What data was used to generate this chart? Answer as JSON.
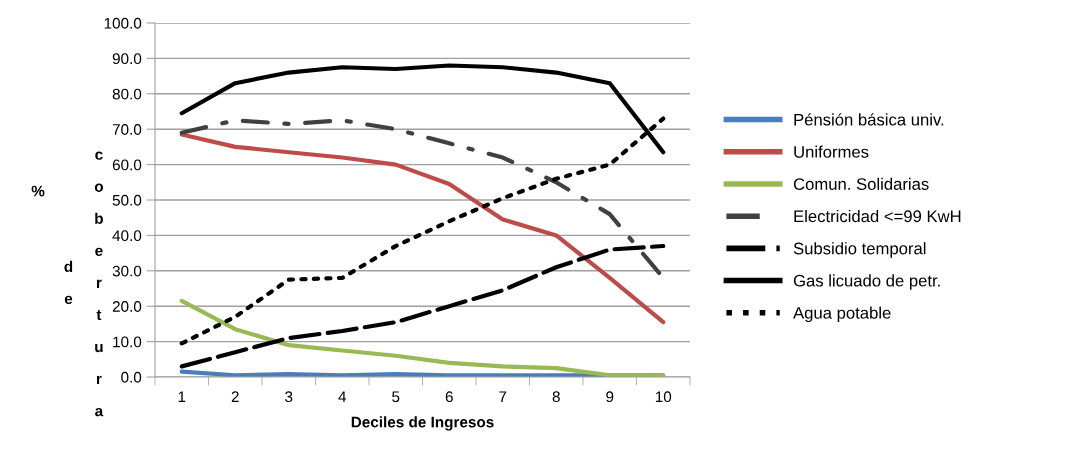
{
  "chart_data": {
    "type": "line",
    "xlabel": "Deciles de Ingresos",
    "ylabel": "% de cobertura",
    "categories": [
      "1",
      "2",
      "3",
      "4",
      "5",
      "6",
      "7",
      "8",
      "9",
      "10"
    ],
    "series": [
      {
        "name": "Pénsión básica univ.",
        "color": "#4a7ebb",
        "line_style": "solid",
        "values": [
          1.5,
          0.5,
          0.8,
          0.5,
          0.8,
          0.5,
          0.5,
          0.5,
          0.5,
          0.5
        ]
      },
      {
        "name": "Uniformes",
        "color": "#be4b48",
        "line_style": "solid",
        "values": [
          68.5,
          65,
          63.5,
          62,
          60,
          54.5,
          44.5,
          40,
          28,
          15.5
        ]
      },
      {
        "name": "Comun. Solidarias",
        "color": "#98b954",
        "line_style": "solid",
        "values": [
          21.5,
          13.5,
          9,
          7.5,
          6,
          4,
          3,
          2.5,
          0.5,
          0.5
        ]
      },
      {
        "name": "Electricidad <=99 KwH",
        "color": "#404040",
        "line_style": "dashdot",
        "values": [
          69,
          72.5,
          71.5,
          72.5,
          70,
          66,
          62,
          55,
          46,
          28
        ]
      },
      {
        "name": "Subsidio temporal",
        "color": "#000000",
        "line_style": "longdash",
        "values": [
          3,
          7,
          11,
          13,
          15.5,
          20,
          24.5,
          31,
          36,
          37
        ]
      },
      {
        "name": "Gas licuado de petr.",
        "color": "#000000",
        "line_style": "solid",
        "values": [
          74.5,
          83,
          86,
          87.5,
          87,
          88,
          87.5,
          86,
          83,
          63.5
        ]
      },
      {
        "name": "Agua potable",
        "color": "#000000",
        "line_style": "dotted",
        "values": [
          9.5,
          17,
          27.5,
          28,
          37,
          44,
          50.5,
          56,
          60,
          73
        ]
      }
    ],
    "ylim": [
      0,
      100
    ],
    "yticks": [
      {
        "value": 0,
        "label": "0.0"
      },
      {
        "value": 10,
        "label": "10.0"
      },
      {
        "value": 20,
        "label": "20.0"
      },
      {
        "value": 30,
        "label": "30.0"
      },
      {
        "value": 40,
        "label": "40.0"
      },
      {
        "value": 50,
        "label": "50.0"
      },
      {
        "value": 60,
        "label": "60.0"
      },
      {
        "value": 70,
        "label": "70.0"
      },
      {
        "value": 80,
        "label": "80.0"
      },
      {
        "value": 90,
        "label": "90.0"
      },
      {
        "value": 100,
        "label": "100.0"
      }
    ],
    "grid": "y",
    "legend": "right",
    "marker": "none"
  }
}
